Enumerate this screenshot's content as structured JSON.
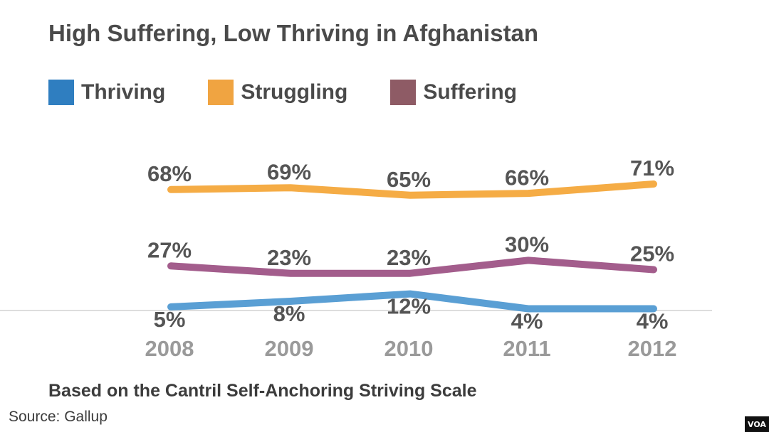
{
  "chart_data": {
    "type": "line",
    "title": "High Suffering, Low Thriving in Afghanistan",
    "subtitle": "Based on the Cantril Self-Anchoring Striving Scale",
    "source": "Source: Gallup",
    "categories": [
      "2008",
      "2009",
      "2010",
      "2011",
      "2012"
    ],
    "series": [
      {
        "name": "Thriving",
        "color": "#5a9fd4",
        "swatch_color": "#2f7ec0",
        "values": [
          5,
          8,
          12,
          4,
          4
        ],
        "labels": [
          "5%",
          "8%",
          "12%",
          "4%",
          "4%"
        ]
      },
      {
        "name": "Struggling",
        "color": "#f5ac45",
        "swatch_color": "#f0a441",
        "values": [
          68,
          69,
          65,
          66,
          71
        ],
        "labels": [
          "68%",
          "69%",
          "65%",
          "66%",
          "71%"
        ]
      },
      {
        "name": "Suffering",
        "color": "#a35d8c",
        "swatch_color": "#8e5b65",
        "values": [
          27,
          23,
          23,
          30,
          25
        ],
        "labels": [
          "27%",
          "23%",
          "23%",
          "30%",
          "25%"
        ]
      }
    ],
    "xlabel": "",
    "ylabel": "",
    "ylim": [
      0,
      100
    ],
    "grid": false,
    "legend_position": "top-left"
  },
  "logo": {
    "text": "VOA"
  }
}
